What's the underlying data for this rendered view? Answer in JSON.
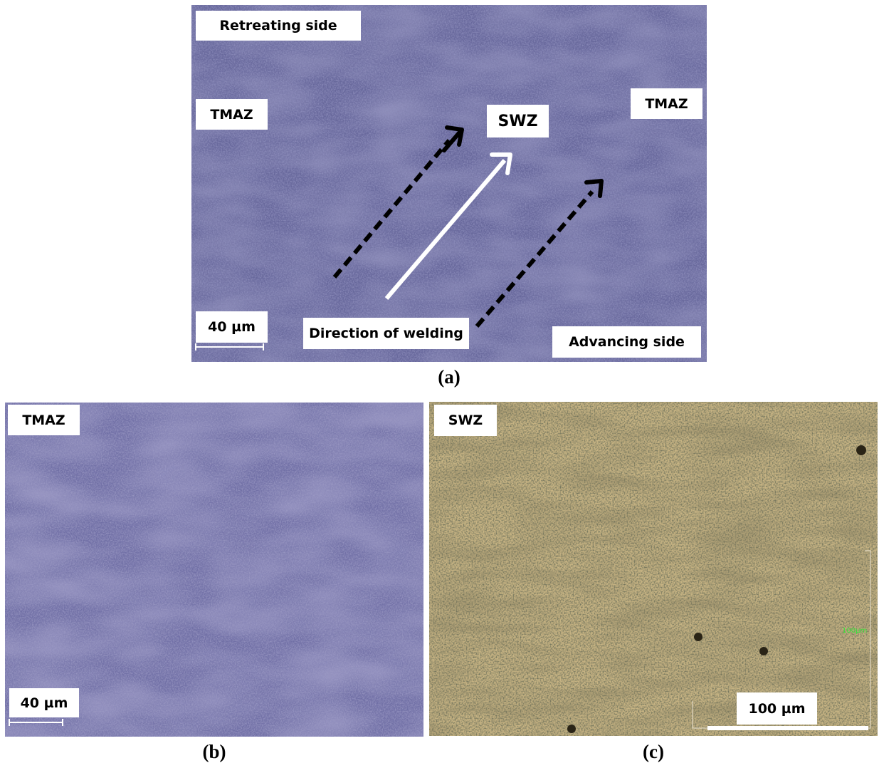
{
  "panel_a": {
    "label_retreating": "Retreating side",
    "label_tmaz_left": "TMAZ",
    "label_swz": "SWZ",
    "label_tmaz_right": "TMAZ",
    "label_scale": "40 µm",
    "label_direction": "Direction of welding",
    "label_advancing": "Advancing side",
    "caption": "(a)"
  },
  "panel_b": {
    "label_tmaz": "TMAZ",
    "label_scale": "40 µm",
    "caption": "(b)"
  },
  "panel_c": {
    "label_swz": "SWZ",
    "label_scale": "100 µm",
    "inset_scale_text": "100µm",
    "caption": "(c)"
  },
  "colors": {
    "micrograph_purple": "#6c6a9a",
    "micrograph_gold": "#8a7a4a",
    "label_bg": "#ffffff",
    "arrow_dashed": "#000000",
    "arrow_solid": "#ffffff"
  }
}
